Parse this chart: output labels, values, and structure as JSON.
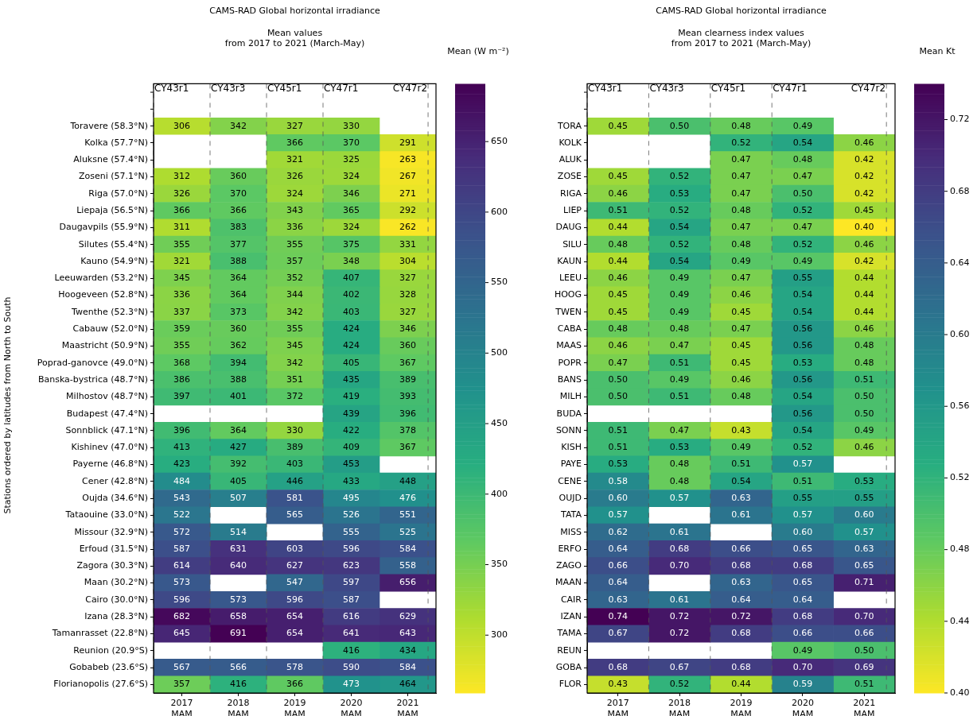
{
  "chart_data": [
    {
      "type": "heatmap",
      "title": "CAMS-RAD Global horizontal irradiance",
      "subtitle": "Mean values\nfrom 2017 to 2021 (March-May)",
      "ylabel": "Stations ordered by latitudes from North to South",
      "clabel": "Mean (W m⁻²)",
      "x": [
        2017,
        2018,
        2019,
        2020,
        2021
      ],
      "xlim": [
        2016.5,
        2021.5
      ],
      "xticks": [
        {
          "value": 2017,
          "label": "2017\nMAM"
        },
        {
          "value": 2018,
          "label": "2018\nMAM"
        },
        {
          "value": 2019,
          "label": "2019\nMAM"
        },
        {
          "value": 2020,
          "label": "2020\nMAM"
        },
        {
          "value": 2021,
          "label": "2021\nMAM"
        }
      ],
      "y_categories": [
        "Toravere (58.3°N)",
        "Kolka (57.7°N)",
        "Aluksne (57.4°N)",
        "Zoseni (57.1°N)",
        "Riga (57.0°N)",
        "Liepaja (56.5°N)",
        "Daugavpils (55.9°N)",
        "Silutes (55.4°N)",
        "Kauno (54.9°N)",
        "Leeuwarden (53.2°N)",
        "Hoogeveen (52.8°N)",
        "Twenthe (52.3°N)",
        "Cabauw (52.0°N)",
        "Maastricht (50.9°N)",
        "Poprad-ganovce (49.0°N)",
        "Banska-bystrica (48.7°N)",
        "Milhostov (48.7°N)",
        "Budapest (47.4°N)",
        "Sonnblick (47.1°N)",
        "Kishinev (47.0°N)",
        "Payerne (46.8°N)",
        "Cener (42.8°N)",
        "Oujda (34.6°N)",
        "Tataouine (33.0°N)",
        "Missour (32.9°N)",
        "Erfoud (31.5°N)",
        "Zagora (30.3°N)",
        "Maan (30.2°N)",
        "Cairo (30.0°N)",
        "Izana (28.3°N)",
        "Tamanrasset (22.8°N)",
        "Reunion (20.9°S)",
        "Gobabeb (23.6°S)",
        "Florianopolis (27.6°S)"
      ],
      "cells": [
        [
          306,
          342,
          327,
          330,
          null
        ],
        [
          null,
          null,
          366,
          370,
          291
        ],
        [
          null,
          null,
          321,
          325,
          263
        ],
        [
          312,
          360,
          326,
          324,
          267
        ],
        [
          326,
          370,
          324,
          346,
          271
        ],
        [
          366,
          366,
          343,
          365,
          292
        ],
        [
          311,
          383,
          336,
          324,
          262
        ],
        [
          355,
          377,
          355,
          375,
          331
        ],
        [
          321,
          388,
          357,
          348,
          304
        ],
        [
          345,
          364,
          352,
          407,
          327
        ],
        [
          336,
          364,
          344,
          402,
          328
        ],
        [
          337,
          373,
          342,
          403,
          327
        ],
        [
          359,
          360,
          355,
          424,
          346
        ],
        [
          355,
          362,
          345,
          424,
          360
        ],
        [
          368,
          394,
          342,
          405,
          367
        ],
        [
          386,
          388,
          351,
          435,
          389
        ],
        [
          397,
          401,
          372,
          419,
          393
        ],
        [
          null,
          null,
          null,
          439,
          396
        ],
        [
          396,
          364,
          330,
          422,
          378
        ],
        [
          413,
          427,
          389,
          409,
          367
        ],
        [
          423,
          392,
          403,
          453,
          null
        ],
        [
          484,
          405,
          446,
          433,
          448
        ],
        [
          543,
          507,
          581,
          495,
          476
        ],
        [
          522,
          null,
          565,
          526,
          551
        ],
        [
          572,
          514,
          null,
          555,
          525
        ],
        [
          587,
          631,
          603,
          596,
          584
        ],
        [
          614,
          640,
          627,
          623,
          558
        ],
        [
          573,
          null,
          547,
          597,
          656
        ],
        [
          596,
          573,
          596,
          587,
          null
        ],
        [
          682,
          658,
          654,
          616,
          629
        ],
        [
          645,
          691,
          654,
          641,
          643
        ],
        [
          null,
          null,
          null,
          416,
          434
        ],
        [
          567,
          566,
          578,
          590,
          584
        ],
        [
          357,
          416,
          366,
          473,
          464
        ]
      ],
      "clim": [
        259,
        691
      ],
      "cticks": [
        300,
        350,
        400,
        450,
        500,
        550,
        600,
        650
      ],
      "ref_lines": [
        {
          "axis": "x",
          "value": 2016.5,
          "label": "CY43r1",
          "line_style": "dashed"
        },
        {
          "axis": "x",
          "value": 2017.5,
          "label": "CY43r3",
          "line_style": "dashed"
        },
        {
          "axis": "x",
          "value": 2018.5,
          "label": "CY45r1",
          "line_style": "dashed"
        },
        {
          "axis": "x",
          "value": 2019.5,
          "label": "CY47r1",
          "line_style": "dashed"
        },
        {
          "axis": "x",
          "value": 2021.36,
          "label": "CY47r2",
          "line_style": "dashed"
        }
      ],
      "data_labels": true
    },
    {
      "type": "heatmap",
      "title": "CAMS-RAD Global horizontal irradiance",
      "subtitle": "Mean clearness index values\nfrom 2017 to 2021 (March-May)",
      "clabel": "Mean Kt",
      "x": [
        2017,
        2018,
        2019,
        2020,
        2021
      ],
      "xlim": [
        2016.5,
        2021.5
      ],
      "xticks": [
        {
          "value": 2017,
          "label": "2017\nMAM"
        },
        {
          "value": 2018,
          "label": "2018\nMAM"
        },
        {
          "value": 2019,
          "label": "2019\nMAM"
        },
        {
          "value": 2020,
          "label": "2020\nMAM"
        },
        {
          "value": 2021,
          "label": "2021\nMAM"
        }
      ],
      "y_categories": [
        "TORA",
        "KOLK",
        "ALUK",
        "ZOSE",
        "RIGA",
        "LIEP",
        "DAUG",
        "SILU",
        "KAUN",
        "LEEU",
        "HOOG",
        "TWEN",
        "CABA",
        "MAAS",
        "POPR",
        "BANS",
        "MILH",
        "BUDA",
        "SONN",
        "KISH",
        "PAYE",
        "CENE",
        "OUJD",
        "TATA",
        "MISS",
        "ERFO",
        "ZAGO",
        "MAAN",
        "CAIR",
        "IZAN",
        "TAMA",
        "REUN",
        "GOBA",
        "FLOR"
      ],
      "cells": [
        [
          0.45,
          0.5,
          0.48,
          0.49,
          null
        ],
        [
          null,
          null,
          0.52,
          0.54,
          0.46
        ],
        [
          null,
          null,
          0.47,
          0.48,
          0.42
        ],
        [
          0.45,
          0.52,
          0.47,
          0.47,
          0.42
        ],
        [
          0.46,
          0.53,
          0.47,
          0.5,
          0.42
        ],
        [
          0.51,
          0.52,
          0.48,
          0.52,
          0.45
        ],
        [
          0.44,
          0.54,
          0.47,
          0.47,
          0.4
        ],
        [
          0.48,
          0.52,
          0.48,
          0.52,
          0.46
        ],
        [
          0.44,
          0.54,
          0.49,
          0.49,
          0.42
        ],
        [
          0.46,
          0.49,
          0.47,
          0.55,
          0.44
        ],
        [
          0.45,
          0.49,
          0.46,
          0.54,
          0.44
        ],
        [
          0.45,
          0.49,
          0.45,
          0.54,
          0.44
        ],
        [
          0.48,
          0.48,
          0.47,
          0.56,
          0.46
        ],
        [
          0.46,
          0.47,
          0.45,
          0.56,
          0.48
        ],
        [
          0.47,
          0.51,
          0.45,
          0.53,
          0.48
        ],
        [
          0.5,
          0.49,
          0.46,
          0.56,
          0.51
        ],
        [
          0.5,
          0.51,
          0.48,
          0.54,
          0.5
        ],
        [
          null,
          null,
          null,
          0.56,
          0.5
        ],
        [
          0.51,
          0.47,
          0.43,
          0.54,
          0.49
        ],
        [
          0.51,
          0.53,
          0.49,
          0.52,
          0.46
        ],
        [
          0.53,
          0.48,
          0.51,
          0.57,
          null
        ],
        [
          0.58,
          0.48,
          0.54,
          0.51,
          0.53
        ],
        [
          0.6,
          0.57,
          0.63,
          0.55,
          0.55
        ],
        [
          0.57,
          null,
          0.61,
          0.57,
          0.6
        ],
        [
          0.62,
          0.61,
          null,
          0.6,
          0.57
        ],
        [
          0.64,
          0.68,
          0.66,
          0.65,
          0.63
        ],
        [
          0.66,
          0.7,
          0.68,
          0.68,
          0.65
        ],
        [
          0.64,
          null,
          0.63,
          0.65,
          0.71
        ],
        [
          0.63,
          0.61,
          0.64,
          0.64,
          null
        ],
        [
          0.74,
          0.72,
          0.72,
          0.68,
          0.7
        ],
        [
          0.67,
          0.72,
          0.68,
          0.66,
          0.66
        ],
        [
          null,
          null,
          null,
          0.49,
          0.5
        ],
        [
          0.68,
          0.67,
          0.68,
          0.7,
          0.69
        ],
        [
          0.43,
          0.52,
          0.44,
          0.59,
          0.51
        ]
      ],
      "cell_labels": [
        [
          "0.45",
          "0.50",
          "0.48",
          "0.49",
          null
        ],
        [
          null,
          null,
          "0.52",
          "0.54",
          "0.46"
        ],
        [
          null,
          null,
          "0.47",
          "0.48",
          "0.42"
        ],
        [
          "0.45",
          "0.52",
          "0.47",
          "0.47",
          "0.42"
        ],
        [
          "0.46",
          "0.53",
          "0.47",
          "0.50",
          "0.42"
        ],
        [
          "0.51",
          "0.52",
          "0.48",
          "0.52",
          "0.45"
        ],
        [
          "0.44",
          "0.54",
          "0.47",
          "0.47",
          "0.40"
        ],
        [
          "0.48",
          "0.52",
          "0.48",
          "0.52",
          "0.46"
        ],
        [
          "0.44",
          "0.54",
          "0.49",
          "0.49",
          "0.42"
        ],
        [
          "0.46",
          "0.49",
          "0.47",
          "0.55",
          "0.44"
        ],
        [
          "0.45",
          "0.49",
          "0.46",
          "0.54",
          "0.44"
        ],
        [
          "0.45",
          "0.49",
          "0.45",
          "0.54",
          "0.44"
        ],
        [
          "0.48",
          "0.48",
          "0.47",
          "0.56",
          "0.46"
        ],
        [
          "0.46",
          "0.47",
          "0.45",
          "0.56",
          "0.48"
        ],
        [
          "0.47",
          "0.51",
          "0.45",
          "0.53",
          "0.48"
        ],
        [
          "0.50",
          "0.49",
          "0.46",
          "0.56",
          "0.51"
        ],
        [
          "0.50",
          "0.51",
          "0.48",
          "0.54",
          "0.50"
        ],
        [
          null,
          null,
          null,
          "0.56",
          "0.50"
        ],
        [
          "0.51",
          "0.47",
          "0.43",
          "0.54",
          "0.49"
        ],
        [
          "0.51",
          "0.53",
          "0.49",
          "0.52",
          "0.46"
        ],
        [
          "0.53",
          "0.48",
          "0.51",
          "0.57",
          null
        ],
        [
          "0.58",
          "0.48",
          "0.54",
          "0.51",
          "0.53"
        ],
        [
          "0.60",
          "0.57",
          "0.63",
          "0.55",
          "0.55"
        ],
        [
          "0.57",
          null,
          "0.61",
          "0.57",
          "0.60"
        ],
        [
          "0.62",
          "0.61",
          null,
          "0.60",
          "0.57"
        ],
        [
          "0.64",
          "0.68",
          "0.66",
          "0.65",
          "0.63"
        ],
        [
          "0.66",
          "0.70",
          "0.68",
          "0.68",
          "0.65"
        ],
        [
          "0.64",
          null,
          "0.63",
          "0.65",
          "0.71"
        ],
        [
          "0.63",
          "0.61",
          "0.64",
          "0.64",
          null
        ],
        [
          "0.74",
          "0.72",
          "0.72",
          "0.68",
          "0.70"
        ],
        [
          "0.67",
          "0.72",
          "0.68",
          "0.66",
          "0.66"
        ],
        [
          null,
          null,
          null,
          "0.49",
          "0.50"
        ],
        [
          "0.68",
          "0.67",
          "0.68",
          "0.70",
          "0.69"
        ],
        [
          "0.43",
          "0.52",
          "0.44",
          "0.59",
          "0.51"
        ]
      ],
      "clim": [
        0.4,
        0.74
      ],
      "cticks": [
        {
          "value": 0.4,
          "label": "0.40"
        },
        {
          "value": 0.44,
          "label": "0.44"
        },
        {
          "value": 0.48,
          "label": "0.48"
        },
        {
          "value": 0.52,
          "label": "0.52"
        },
        {
          "value": 0.56,
          "label": "0.56"
        },
        {
          "value": 0.6,
          "label": "0.60"
        },
        {
          "value": 0.64,
          "label": "0.64"
        },
        {
          "value": 0.68,
          "label": "0.68"
        },
        {
          "value": 0.72,
          "label": "0.72"
        }
      ],
      "ref_lines": [
        {
          "axis": "x",
          "value": 2016.5,
          "label": "CY43r1",
          "line_style": "dashed"
        },
        {
          "axis": "x",
          "value": 2017.5,
          "label": "CY43r3",
          "line_style": "dashed"
        },
        {
          "axis": "x",
          "value": 2018.5,
          "label": "CY45r1",
          "line_style": "dashed"
        },
        {
          "axis": "x",
          "value": 2019.5,
          "label": "CY47r1",
          "line_style": "dashed"
        },
        {
          "axis": "x",
          "value": 2021.36,
          "label": "CY47r2",
          "line_style": "dashed"
        }
      ],
      "data_labels": true
    }
  ]
}
